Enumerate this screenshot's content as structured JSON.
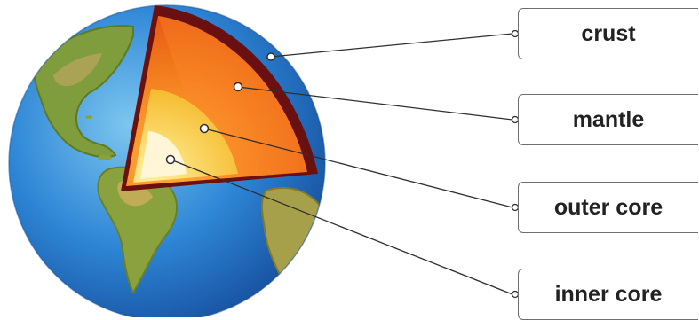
{
  "labels": {
    "crust": "crust",
    "mantle": "mantle",
    "outer_core": "outer core",
    "inner_core": "inner core"
  },
  "colors": {
    "ocean": "#2b7fd1",
    "land": "#7a9a3a",
    "crust": "#6b1010",
    "mantle": "#ef6a16",
    "outer_core": "#f7c83a",
    "inner_core": "#fff6d8"
  }
}
